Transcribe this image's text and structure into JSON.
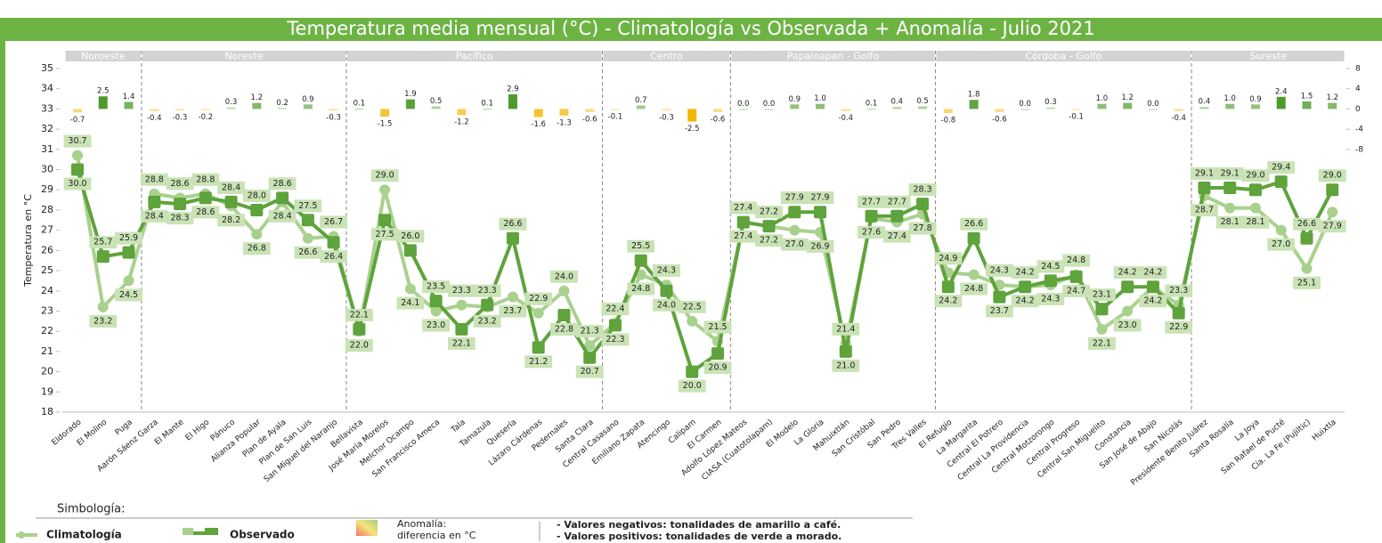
{
  "chart_data": {
    "type": "line",
    "title": "Temperatura media mensual (°C)  -   Climatología vs Observada + Anomalía  -  Julio  2021",
    "y_label": "Temperatura en °C",
    "groups": [
      {
        "name": "Noroeste",
        "categories": [
          "Eldorado",
          "El Molino",
          "Puga"
        ]
      },
      {
        "name": "Noreste",
        "categories": [
          "Aarón Sáenz Garza",
          "El Mante",
          "El Higo",
          "Pánuco",
          "Alianza Popular",
          "Plan de Ayala",
          "Plan de San Luis",
          "San Miguel del Naranjo"
        ]
      },
      {
        "name": "Pacífico",
        "categories": [
          "Bellavista",
          "José María Morelos",
          "Melchor Ocampo",
          "San Francisco Ameca",
          "Tala",
          "Tamazula",
          "Quesería",
          "Lázaro Cárdenas",
          "Pedernales",
          "Santa Clara"
        ]
      },
      {
        "name": "Centro",
        "categories": [
          "Central Casasano",
          "Emiliano Zapata",
          "Atencingo",
          "Calipam",
          "El Carmen"
        ]
      },
      {
        "name": "Papaloapan - Golfo",
        "categories": [
          "Adolfo López Mateos",
          "CIASA (Cuatotolapam)",
          "El Modelo",
          "La Gloria",
          "Mahuixtlán",
          "San Cristóbal",
          "San Pedro",
          "Tres Valles"
        ]
      },
      {
        "name": "Córdoba - Golfo",
        "categories": [
          "El Refugio",
          "La Margarita",
          "Central El Potrero",
          "Central La Providencia",
          "Central Motzorongo",
          "Central Progreso",
          "Central San Miguelito",
          "Constancia",
          "San José de Abajo",
          "San Nicolás"
        ]
      },
      {
        "name": "Sureste",
        "categories": [
          "Presidente Benito Juárez",
          "Santa Rosalía",
          "La Joya",
          "San Rafael de Pucté",
          "Cía. La Fe (Pujiltic)",
          "Huixtla"
        ]
      }
    ],
    "series": [
      {
        "name": "Climatología",
        "color": "#a9d18e",
        "marker": "circle",
        "values": [
          30.7,
          23.2,
          24.5,
          28.8,
          28.6,
          28.8,
          28.2,
          26.8,
          28.4,
          26.6,
          26.7,
          22.0,
          29.0,
          24.1,
          23.0,
          23.3,
          23.2,
          23.7,
          22.9,
          24.0,
          21.3,
          22.4,
          24.8,
          24.3,
          22.5,
          21.5,
          27.4,
          27.2,
          27.0,
          26.9,
          21.4,
          27.6,
          27.4,
          27.8,
          24.9,
          24.8,
          24.3,
          24.2,
          24.3,
          24.8,
          22.1,
          23.0,
          24.2,
          23.3,
          28.7,
          28.1,
          28.1,
          27.0,
          25.1,
          27.9
        ],
        "value_labels": [
          "30.7",
          "23.2",
          "24.5",
          "28.8",
          "28.6",
          "28.8",
          "28.2",
          "26.8",
          "28.4",
          "26.6",
          "26.7",
          "22.0",
          "29.0",
          "24.1",
          "23.0",
          "23.3",
          "23.2",
          "23.7",
          "22.9",
          "24.0",
          "21.3",
          "22.4",
          "24.8",
          "24.3",
          "22.5",
          "21.5",
          "27.4",
          "27.2",
          "27.0",
          "26.9",
          "21.4",
          "27.6",
          "27.4",
          "27.8",
          "24.9",
          "24.8",
          "24.3",
          "24.2",
          "24.3",
          "24.8",
          "22.1",
          "23.0",
          "24.2",
          "23.3",
          "28.7",
          "28.1",
          "28.1",
          "27.0",
          "25.1",
          "27.9"
        ]
      },
      {
        "name": "Observado",
        "color": "#5ea33b",
        "marker": "square",
        "values": [
          30.0,
          25.7,
          25.9,
          28.4,
          28.3,
          28.6,
          28.4,
          28.0,
          28.6,
          27.5,
          26.4,
          22.1,
          27.5,
          26.0,
          23.5,
          22.1,
          23.3,
          26.6,
          21.2,
          22.8,
          20.7,
          22.3,
          25.5,
          24.0,
          20.0,
          20.9,
          27.4,
          27.2,
          27.9,
          27.9,
          21.0,
          27.7,
          27.7,
          28.3,
          24.2,
          26.6,
          23.7,
          24.2,
          24.5,
          24.7,
          23.1,
          24.2,
          24.2,
          22.9,
          29.1,
          29.1,
          29.0,
          29.4,
          26.6,
          29.0
        ],
        "value_labels": [
          "30.0",
          "25.7",
          "25.9",
          "28.4",
          "28.3",
          "28.6",
          "28.4",
          "28.0",
          "28.6",
          "27.5",
          "26.4",
          "22.1",
          "27.5",
          "26.0",
          "23.5",
          "22.1",
          "23.3",
          "26.6",
          "21.2",
          "22.8",
          "20.7",
          "22.3",
          "25.5",
          "24.0",
          "20.0",
          "20.9",
          "27.4",
          "27.2",
          "27.9",
          "27.9",
          "21.0",
          "27.7",
          "27.7",
          "28.3",
          "24.2",
          "26.6",
          "23.7",
          "24.2",
          "24.5",
          "24.7",
          "23.1",
          "24.2",
          "24.2",
          "22.9",
          "29.1",
          "29.1",
          "29.0",
          "29.4",
          "26.6",
          "29.0"
        ]
      },
      {
        "name": "Anomalía:",
        "type": "bar",
        "axis": "y2",
        "color_positive": "#4f9a2c",
        "color_negative": "#f2b705",
        "values": [
          -0.7,
          2.5,
          1.4,
          -0.4,
          -0.3,
          -0.2,
          0.3,
          1.2,
          0.2,
          0.9,
          -0.3,
          0.1,
          -1.5,
          1.9,
          0.5,
          -1.2,
          0.1,
          2.9,
          -1.6,
          -1.3,
          -0.6,
          -0.1,
          0.7,
          -0.3,
          -2.5,
          -0.6,
          0.0,
          0.0,
          0.9,
          1.0,
          -0.4,
          0.1,
          0.4,
          0.5,
          -0.8,
          1.8,
          -0.6,
          0.0,
          0.3,
          -0.1,
          1.0,
          1.2,
          0.0,
          -0.4,
          0.4,
          1.0,
          0.9,
          2.4,
          1.5,
          1.2
        ],
        "value_labels": [
          "-0.7",
          "2.5",
          "1.4",
          "-0.4",
          "-0.3",
          "-0.2",
          "0.3",
          "1.2",
          "0.2",
          "0.9",
          "-0.3",
          "0.1",
          "-1.5",
          "1.9",
          "0.5",
          "-1.2",
          "0.1",
          "2.9",
          "-1.6",
          "-1.3",
          "-0.6",
          "-0.1",
          "0.7",
          "-0.3",
          "-2.5",
          "-0.6",
          "0.0",
          "0.0",
          "0.9",
          "1.0",
          "-0.4",
          "0.1",
          "0.4",
          "0.5",
          "-0.8",
          "1.8",
          "-0.6",
          "0.0",
          "0.3",
          "-0.1",
          "1.0",
          "1.2",
          "0.0",
          "-0.4",
          "0.4",
          "1.0",
          "0.9",
          "2.4",
          "1.5",
          "1.2"
        ]
      }
    ],
    "ylim": [
      18,
      35
    ],
    "yticks": [
      18,
      19,
      20,
      21,
      22,
      23,
      24,
      25,
      26,
      27,
      28,
      29,
      30,
      31,
      32,
      33,
      34,
      35
    ],
    "y2lim": [
      -60,
      8
    ],
    "y2ticks": [
      8,
      4,
      0,
      -4,
      -8
    ],
    "grid": false,
    "legend_title": "Simbología:",
    "legend_note": "diferencia en °C",
    "notes": [
      "- Valores negativos: tonalidades de amarillo a café.",
      "- Valores positivos: tonalidades de verde a morado."
    ]
  }
}
